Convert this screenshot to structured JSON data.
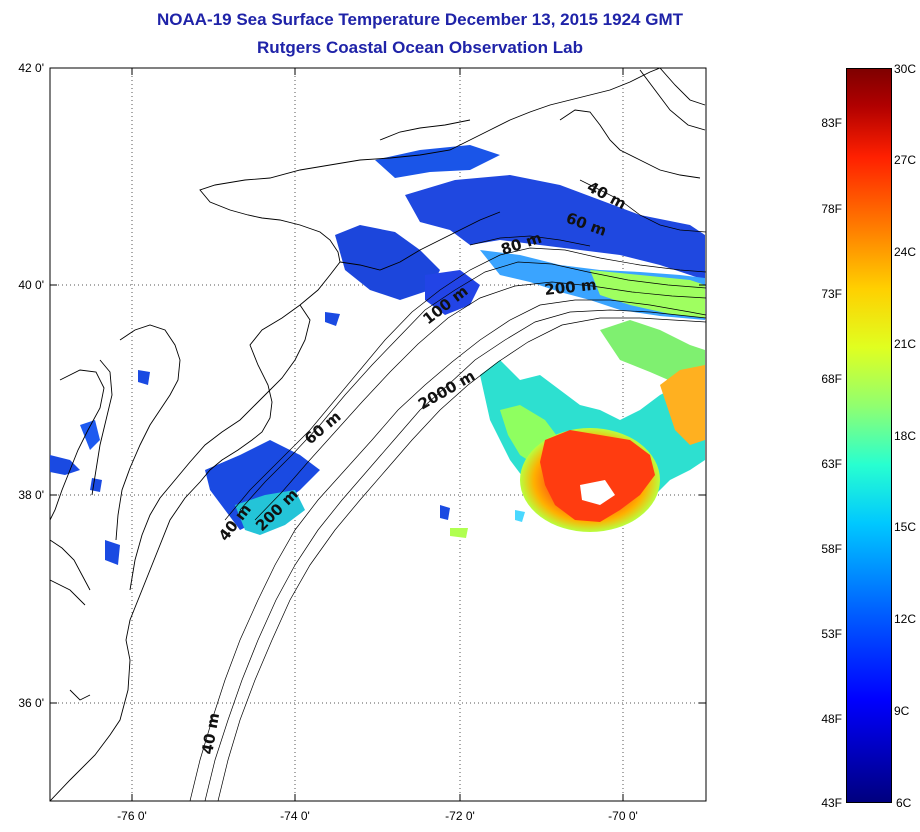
{
  "title": {
    "line1": "NOAA-19 Sea Surface Temperature December 13, 2015 1924 GMT",
    "line2": "Rutgers Coastal Ocean Observation Lab"
  },
  "axes": {
    "lat_labels": [
      "42 0'",
      "40 0'",
      "38 0'",
      "36 0'"
    ],
    "lon_labels": [
      "-76 0'",
      "-74 0'",
      "-72 0'",
      "-70 0'"
    ]
  },
  "depth_contours": [
    "40 m",
    "60 m",
    "80 m",
    "200 m",
    "100 m",
    "2000 m",
    "60 m",
    "40 m",
    "200 m",
    "40 m"
  ],
  "colorbar": {
    "celsius": [
      "30C",
      "27C",
      "24C",
      "21C",
      "18C",
      "15C",
      "12C",
      "9C",
      "6C"
    ],
    "fahrenheit": [
      "83F",
      "78F",
      "73F",
      "68F",
      "63F",
      "58F",
      "53F",
      "48F",
      "43F"
    ]
  },
  "colors": {
    "title": "#1f23a8",
    "cold": "#1a3fe0",
    "warm": "#ff3010"
  }
}
